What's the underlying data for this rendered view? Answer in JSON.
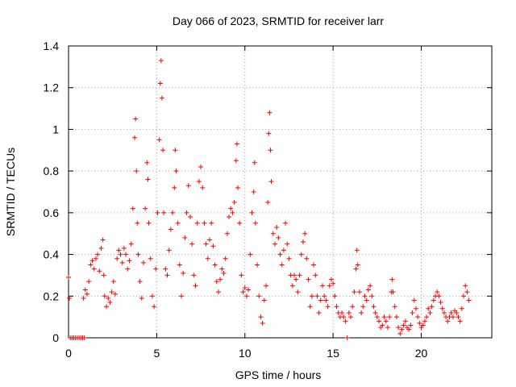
{
  "chart_data": {
    "type": "scatter",
    "title": "Day 066 of 2023, SRMTID for receiver larr",
    "xlabel": "GPS time / hours",
    "ylabel": "SRMTID / TECUs",
    "xlim": [
      0,
      24.0
    ],
    "ylim": [
      0,
      1.4
    ],
    "xticks": [
      0,
      5,
      10,
      15,
      20
    ],
    "yticks": [
      0,
      0.2,
      0.4,
      0.6,
      0.8,
      1,
      1.2,
      1.4
    ],
    "xtick_labels": [
      "0",
      "5",
      "10",
      "15",
      "20"
    ],
    "ytick_labels": [
      "0",
      "0.2",
      "0.4",
      "0.6",
      "0.8",
      "1",
      "1.2",
      "1.4"
    ],
    "grid": true,
    "marker": "+",
    "color": "#ff0000",
    "series": [
      {
        "name": "SRMTID",
        "points": [
          [
            0.0,
            0.29
          ],
          [
            0.05,
            0.19
          ],
          [
            0.1,
            0.0
          ],
          [
            0.2,
            0.0
          ],
          [
            0.3,
            0.0
          ],
          [
            0.4,
            0.0
          ],
          [
            0.5,
            0.0
          ],
          [
            0.6,
            0.0
          ],
          [
            0.7,
            0.0
          ],
          [
            0.8,
            0.0
          ],
          [
            0.9,
            0.0
          ],
          [
            0.85,
            0.19
          ],
          [
            0.95,
            0.23
          ],
          [
            1.05,
            0.21
          ],
          [
            1.15,
            0.27
          ],
          [
            1.25,
            0.35
          ],
          [
            1.35,
            0.37
          ],
          [
            1.45,
            0.33
          ],
          [
            1.55,
            0.38
          ],
          [
            1.65,
            0.4
          ],
          [
            1.75,
            0.32
          ],
          [
            1.85,
            0.43
          ],
          [
            1.95,
            0.47
          ],
          [
            2.0,
            0.3
          ],
          [
            2.05,
            0.2
          ],
          [
            2.15,
            0.15
          ],
          [
            2.25,
            0.19
          ],
          [
            2.35,
            0.17
          ],
          [
            2.45,
            0.22
          ],
          [
            2.55,
            0.27
          ],
          [
            2.65,
            0.21
          ],
          [
            2.75,
            0.38
          ],
          [
            2.85,
            0.42
          ],
          [
            2.95,
            0.4
          ],
          [
            3.05,
            0.36
          ],
          [
            3.15,
            0.43
          ],
          [
            3.25,
            0.4
          ],
          [
            3.35,
            0.33
          ],
          [
            3.45,
            0.37
          ],
          [
            3.55,
            0.45
          ],
          [
            3.65,
            0.62
          ],
          [
            3.75,
            0.96
          ],
          [
            3.8,
            1.05
          ],
          [
            3.85,
            0.8
          ],
          [
            3.9,
            0.55
          ],
          [
            3.95,
            0.4
          ],
          [
            4.05,
            0.27
          ],
          [
            4.15,
            0.19
          ],
          [
            4.25,
            0.36
          ],
          [
            4.35,
            0.62
          ],
          [
            4.45,
            0.84
          ],
          [
            4.5,
            0.76
          ],
          [
            4.55,
            0.55
          ],
          [
            4.65,
            0.38
          ],
          [
            4.75,
            0.2
          ],
          [
            4.85,
            0.15
          ],
          [
            4.95,
            0.33
          ],
          [
            5.05,
            0.6
          ],
          [
            5.15,
            0.95
          ],
          [
            5.2,
            1.22
          ],
          [
            5.25,
            1.33
          ],
          [
            5.3,
            1.15
          ],
          [
            5.35,
            0.9
          ],
          [
            5.4,
            0.6
          ],
          [
            5.5,
            0.33
          ],
          [
            5.6,
            0.3
          ],
          [
            5.7,
            0.42
          ],
          [
            5.8,
            0.52
          ],
          [
            5.9,
            0.6
          ],
          [
            6.0,
            0.72
          ],
          [
            6.05,
            0.9
          ],
          [
            6.1,
            0.8
          ],
          [
            6.2,
            0.55
          ],
          [
            6.3,
            0.35
          ],
          [
            6.4,
            0.2
          ],
          [
            6.5,
            0.31
          ],
          [
            6.6,
            0.48
          ],
          [
            6.7,
            0.6
          ],
          [
            6.8,
            0.73
          ],
          [
            6.9,
            0.58
          ],
          [
            7.0,
            0.45
          ],
          [
            7.1,
            0.3
          ],
          [
            7.2,
            0.25
          ],
          [
            7.3,
            0.55
          ],
          [
            7.4,
            0.75
          ],
          [
            7.5,
            0.82
          ],
          [
            7.6,
            0.72
          ],
          [
            7.7,
            0.55
          ],
          [
            7.8,
            0.45
          ],
          [
            7.9,
            0.38
          ],
          [
            8.0,
            0.47
          ],
          [
            8.1,
            0.55
          ],
          [
            8.2,
            0.44
          ],
          [
            8.3,
            0.35
          ],
          [
            8.4,
            0.27
          ],
          [
            8.5,
            0.22
          ],
          [
            8.6,
            0.28
          ],
          [
            8.7,
            0.33
          ],
          [
            8.8,
            0.31
          ],
          [
            8.9,
            0.38
          ],
          [
            9.0,
            0.5
          ],
          [
            9.1,
            0.58
          ],
          [
            9.2,
            0.62
          ],
          [
            9.3,
            0.6
          ],
          [
            9.4,
            0.65
          ],
          [
            9.5,
            0.85
          ],
          [
            9.55,
            0.93
          ],
          [
            9.6,
            0.72
          ],
          [
            9.7,
            0.55
          ],
          [
            9.8,
            0.3
          ],
          [
            9.9,
            0.22
          ],
          [
            10.0,
            0.24
          ],
          [
            10.1,
            0.2
          ],
          [
            10.2,
            0.23
          ],
          [
            10.3,
            0.4
          ],
          [
            10.4,
            0.6
          ],
          [
            10.5,
            0.7
          ],
          [
            10.55,
            0.84
          ],
          [
            10.6,
            0.55
          ],
          [
            10.7,
            0.35
          ],
          [
            10.8,
            0.2
          ],
          [
            10.9,
            0.1
          ],
          [
            11.0,
            0.07
          ],
          [
            11.1,
            0.18
          ],
          [
            11.2,
            0.25
          ],
          [
            11.3,
            0.65
          ],
          [
            11.35,
            0.98
          ],
          [
            11.4,
            1.08
          ],
          [
            11.45,
            0.9
          ],
          [
            11.5,
            0.75
          ],
          [
            11.6,
            0.5
          ],
          [
            11.7,
            0.45
          ],
          [
            11.8,
            0.53
          ],
          [
            11.9,
            0.48
          ],
          [
            12.0,
            0.4
          ],
          [
            12.1,
            0.35
          ],
          [
            12.2,
            0.42
          ],
          [
            12.3,
            0.55
          ],
          [
            12.4,
            0.45
          ],
          [
            12.5,
            0.38
          ],
          [
            12.6,
            0.3
          ],
          [
            12.7,
            0.25
          ],
          [
            12.8,
            0.3
          ],
          [
            12.9,
            0.28
          ],
          [
            13.0,
            0.22
          ],
          [
            13.1,
            0.3
          ],
          [
            13.2,
            0.4
          ],
          [
            13.3,
            0.46
          ],
          [
            13.4,
            0.5
          ],
          [
            13.5,
            0.38
          ],
          [
            13.6,
            0.28
          ],
          [
            13.7,
            0.15
          ],
          [
            13.8,
            0.2
          ],
          [
            13.9,
            0.35
          ],
          [
            14.0,
            0.3
          ],
          [
            14.1,
            0.2
          ],
          [
            14.2,
            0.12
          ],
          [
            14.3,
            0.18
          ],
          [
            14.4,
            0.25
          ],
          [
            14.5,
            0.2
          ],
          [
            14.6,
            0.18
          ],
          [
            14.7,
            0.15
          ],
          [
            14.8,
            0.25
          ],
          [
            14.9,
            0.28
          ],
          [
            15.0,
            0.26
          ],
          [
            15.1,
            0.2
          ],
          [
            15.2,
            0.15
          ],
          [
            15.3,
            0.12
          ],
          [
            15.4,
            0.1
          ],
          [
            15.5,
            0.12
          ],
          [
            15.6,
            0.1
          ],
          [
            15.7,
            0.08
          ],
          [
            15.8,
            0.0
          ],
          [
            15.9,
            0.12
          ],
          [
            16.0,
            0.1
          ],
          [
            16.1,
            0.15
          ],
          [
            16.2,
            0.22
          ],
          [
            16.3,
            0.33
          ],
          [
            16.35,
            0.42
          ],
          [
            16.4,
            0.35
          ],
          [
            16.5,
            0.22
          ],
          [
            16.6,
            0.12
          ],
          [
            16.7,
            0.15
          ],
          [
            16.8,
            0.2
          ],
          [
            16.9,
            0.18
          ],
          [
            17.0,
            0.23
          ],
          [
            17.1,
            0.25
          ],
          [
            17.2,
            0.2
          ],
          [
            17.3,
            0.15
          ],
          [
            17.4,
            0.12
          ],
          [
            17.5,
            0.1
          ],
          [
            17.6,
            0.08
          ],
          [
            17.7,
            0.05
          ],
          [
            17.8,
            0.06
          ],
          [
            17.9,
            0.1
          ],
          [
            18.0,
            0.08
          ],
          [
            18.1,
            0.05
          ],
          [
            18.2,
            0.1
          ],
          [
            18.3,
            0.22
          ],
          [
            18.35,
            0.28
          ],
          [
            18.4,
            0.22
          ],
          [
            18.5,
            0.15
          ],
          [
            18.6,
            0.1
          ],
          [
            18.7,
            0.05
          ],
          [
            18.8,
            0.02
          ],
          [
            18.9,
            0.04
          ],
          [
            19.0,
            0.06
          ],
          [
            19.1,
            0.08
          ],
          [
            19.2,
            0.05
          ],
          [
            19.3,
            0.04
          ],
          [
            19.4,
            0.06
          ],
          [
            19.5,
            0.12
          ],
          [
            19.6,
            0.18
          ],
          [
            19.7,
            0.14
          ],
          [
            19.8,
            0.1
          ],
          [
            19.9,
            0.07
          ],
          [
            20.0,
            0.05
          ],
          [
            20.1,
            0.06
          ],
          [
            20.2,
            0.08
          ],
          [
            20.3,
            0.1
          ],
          [
            20.4,
            0.14
          ],
          [
            20.5,
            0.12
          ],
          [
            20.6,
            0.15
          ],
          [
            20.7,
            0.18
          ],
          [
            20.8,
            0.2
          ],
          [
            20.9,
            0.22
          ],
          [
            21.0,
            0.2
          ],
          [
            21.1,
            0.17
          ],
          [
            21.2,
            0.14
          ],
          [
            21.3,
            0.12
          ],
          [
            21.4,
            0.1
          ],
          [
            21.5,
            0.08
          ],
          [
            21.6,
            0.1
          ],
          [
            21.7,
            0.12
          ],
          [
            21.8,
            0.1
          ],
          [
            21.9,
            0.13
          ],
          [
            22.0,
            0.12
          ],
          [
            22.1,
            0.1
          ],
          [
            22.2,
            0.08
          ],
          [
            22.3,
            0.14
          ],
          [
            22.4,
            0.2
          ],
          [
            22.5,
            0.25
          ],
          [
            22.6,
            0.22
          ],
          [
            22.7,
            0.18
          ]
        ]
      }
    ]
  }
}
